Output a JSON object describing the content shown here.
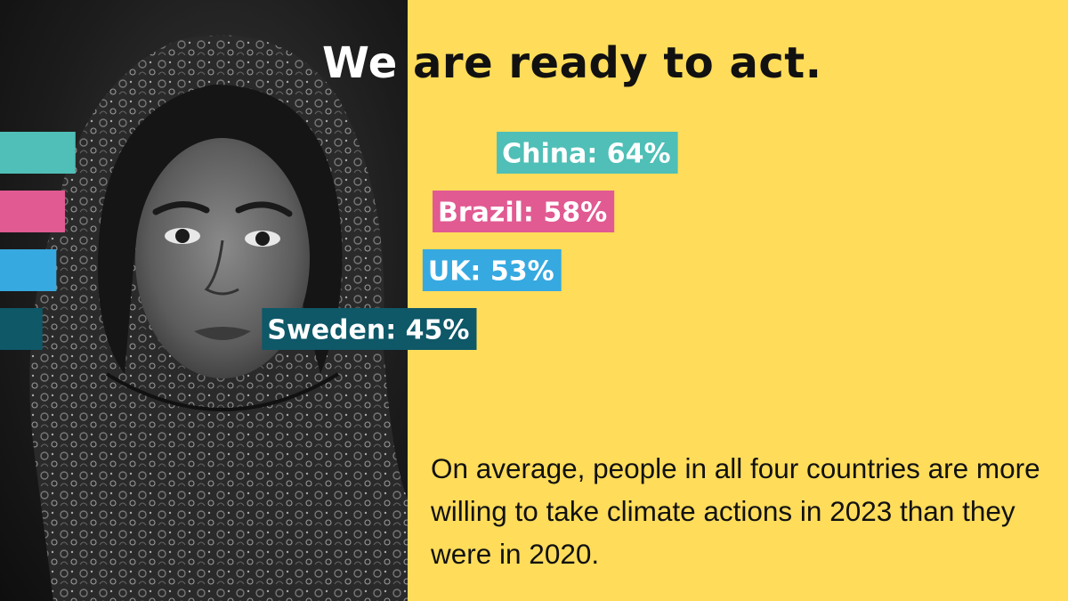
{
  "title": {
    "lead": "We",
    "rest": "are ready to act."
  },
  "chart_data": {
    "type": "bar",
    "orientation": "horizontal",
    "categories": [
      "China",
      "Brazil",
      "UK",
      "Sweden"
    ],
    "values": [
      64,
      58,
      53,
      45
    ],
    "unit": "%",
    "labels": [
      "China: 64%",
      "Brazil: 58%",
      "UK: 53%",
      "Sweden: 45%"
    ],
    "colors": [
      "#4fbfb7",
      "#e15a92",
      "#36a9e1",
      "#0e5868"
    ],
    "title": "We are ready to act.",
    "xlabel": "",
    "ylabel": "",
    "grid": false,
    "legend": "none"
  },
  "body_text": "On average, people in all four countries are more willing to take climate actions in 2023 than they were in 2020.",
  "colors": {
    "background": "#ffdc5a",
    "text": "#111111"
  }
}
